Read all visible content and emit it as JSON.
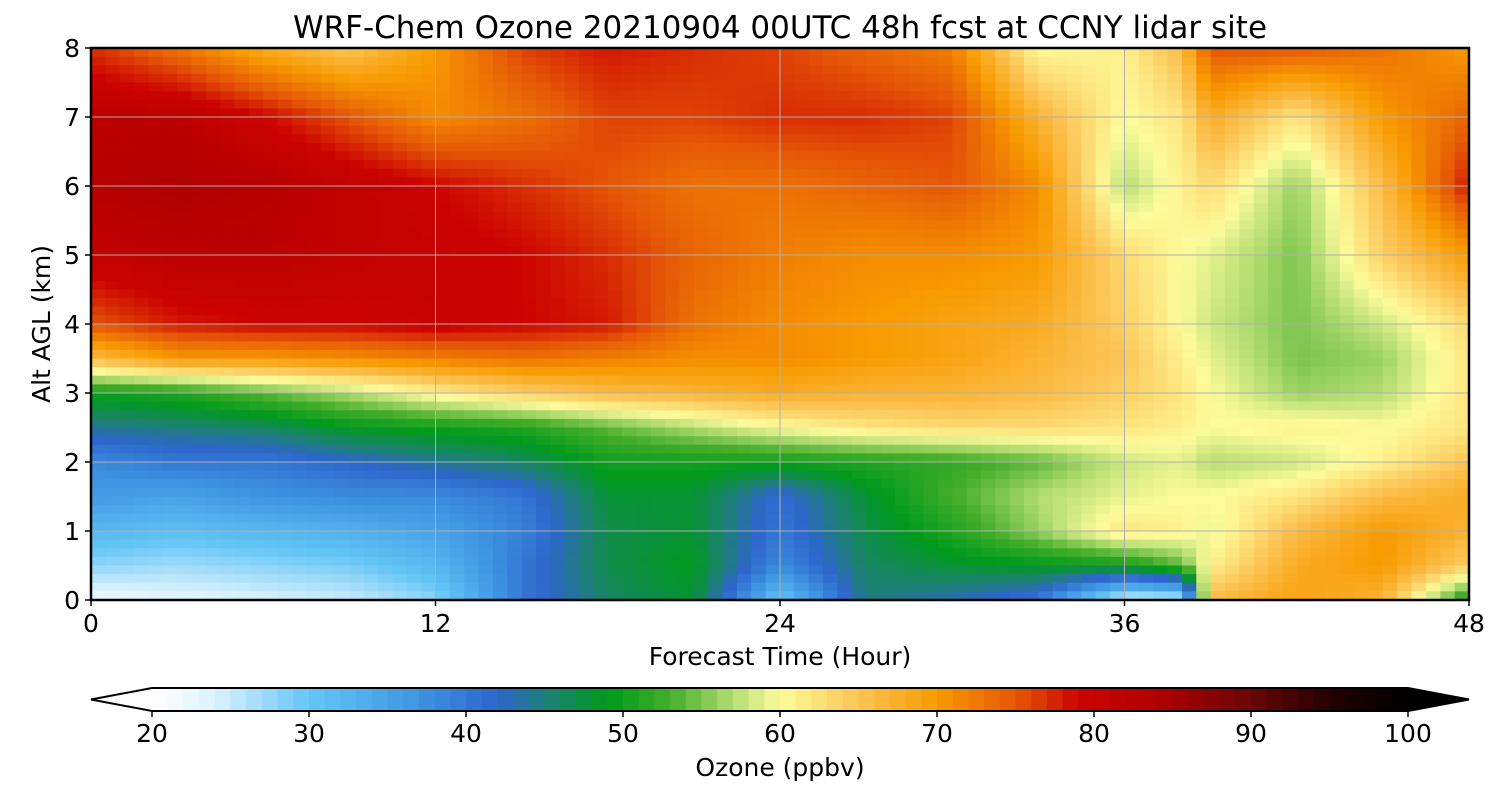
{
  "chart_data": {
    "type": "heatmap",
    "title": "WRF-Chem Ozone  20210904 00UTC 48h fcst at CCNY lidar site",
    "xlabel": "Forecast Time (Hour)",
    "ylabel": "Alt AGL (km)",
    "xlim": [
      0,
      48
    ],
    "ylim": [
      0,
      8
    ],
    "x_ticks": [
      "0",
      "12",
      "24",
      "36",
      "48"
    ],
    "y_ticks": [
      "0",
      "1",
      "2",
      "3",
      "4",
      "5",
      "6",
      "7",
      "8"
    ],
    "grid": true,
    "x": [
      0,
      3,
      6,
      9,
      12,
      15,
      18,
      21,
      24,
      27,
      30,
      33,
      36,
      38,
      39,
      42,
      45,
      48
    ],
    "y": [
      0,
      0.5,
      1,
      1.5,
      2,
      2.5,
      3,
      3.5,
      4,
      5,
      6,
      7,
      8
    ],
    "z": [
      [
        22,
        23,
        24,
        25,
        28,
        40,
        46,
        48,
        30,
        45,
        43,
        40,
        24,
        25,
        66,
        69,
        67,
        50
      ],
      [
        28,
        27,
        28,
        29,
        32,
        40,
        47,
        49,
        38,
        46,
        48,
        49,
        50,
        54,
        61,
        68,
        70,
        64
      ],
      [
        32,
        31,
        32,
        33,
        35,
        39,
        47,
        48,
        40,
        47,
        51,
        56,
        62,
        61,
        59,
        66,
        70,
        67
      ],
      [
        36,
        35,
        37,
        38,
        38,
        40,
        48,
        48,
        41,
        48,
        53,
        57,
        59,
        60,
        60,
        62,
        66,
        68
      ],
      [
        38,
        40,
        40,
        42,
        44,
        46,
        50,
        50,
        50,
        51,
        52,
        54,
        58,
        59,
        57,
        58,
        61,
        65
      ],
      [
        44,
        45,
        46,
        49,
        50,
        51,
        54,
        57,
        60,
        62,
        63,
        63,
        62,
        61,
        60,
        61,
        60,
        62
      ],
      [
        50,
        51,
        54,
        57,
        61,
        64,
        66,
        67,
        68,
        67,
        67,
        66,
        64,
        62,
        60,
        56,
        57,
        62
      ],
      [
        66,
        70,
        70,
        71,
        72,
        73,
        72,
        71,
        71,
        70,
        69,
        67,
        65,
        61,
        59,
        55,
        56,
        62
      ],
      [
        75,
        78,
        79,
        79,
        80,
        79,
        78,
        73,
        71,
        70,
        69,
        68,
        64,
        60,
        58,
        55,
        58,
        63
      ],
      [
        81,
        82,
        82,
        81,
        80,
        79,
        77,
        74,
        72,
        71,
        71,
        70,
        63,
        60,
        59,
        55,
        64,
        70
      ],
      [
        83,
        84,
        83,
        81,
        79,
        77,
        75,
        73,
        73,
        74,
        75,
        71,
        57,
        61,
        63,
        56,
        66,
        78
      ],
      [
        82,
        82,
        79,
        75,
        71,
        73,
        76,
        76,
        77,
        77,
        76,
        67,
        60,
        62,
        68,
        62,
        70,
        74
      ],
      [
        77,
        73,
        68,
        65,
        70,
        76,
        78,
        77,
        76,
        74,
        72,
        60,
        61,
        66,
        75,
        75,
        73,
        70
      ]
    ],
    "colorbar": {
      "label": "Ozone  (ppbv)",
      "min": 20,
      "max": 100,
      "ticks": [
        "20",
        "30",
        "40",
        "50",
        "60",
        "70",
        "80",
        "90",
        "100"
      ],
      "extend": "both",
      "colors": [
        {
          "v": 20,
          "c": "#ffffff"
        },
        {
          "v": 24,
          "c": "#dbf2fd"
        },
        {
          "v": 30,
          "c": "#63c5f6"
        },
        {
          "v": 37,
          "c": "#3e94e1"
        },
        {
          "v": 42,
          "c": "#2d65cc"
        },
        {
          "v": 45,
          "c": "#1e7e7a"
        },
        {
          "v": 49,
          "c": "#009a1c"
        },
        {
          "v": 53,
          "c": "#43ad2a"
        },
        {
          "v": 57,
          "c": "#b5dd73"
        },
        {
          "v": 60,
          "c": "#fdfb9b"
        },
        {
          "v": 65,
          "c": "#fcc455"
        },
        {
          "v": 70,
          "c": "#f89a00"
        },
        {
          "v": 75,
          "c": "#e55707"
        },
        {
          "v": 79,
          "c": "#cc0300"
        },
        {
          "v": 84,
          "c": "#b00000"
        },
        {
          "v": 90,
          "c": "#6a0505"
        },
        {
          "v": 95,
          "c": "#240000"
        },
        {
          "v": 100,
          "c": "#000000"
        }
      ]
    }
  }
}
